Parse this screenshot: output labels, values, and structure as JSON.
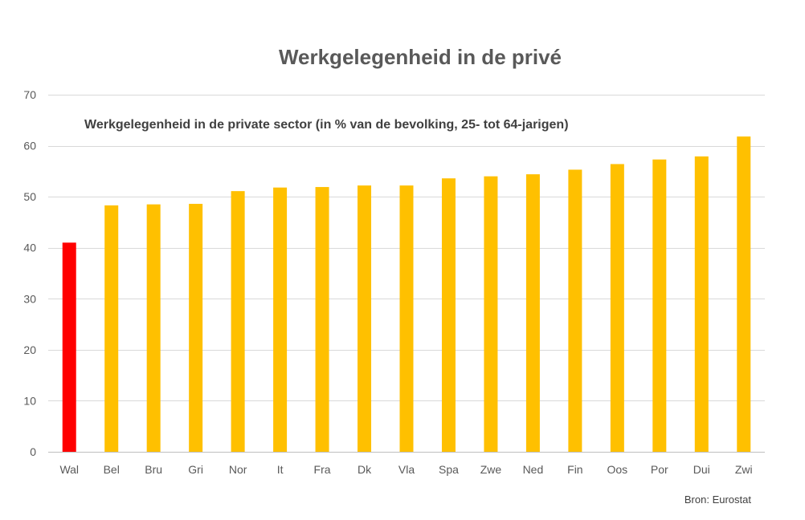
{
  "chart_data": {
    "type": "bar",
    "title": "Werkgelegenheid in de privé",
    "subtitle": "Werkgelegenheid in de private sector (in % van de bevolking, 25- tot 64-jarigen)",
    "xlabel": "",
    "ylabel": "",
    "ylim": [
      0,
      70
    ],
    "yticks": [
      0,
      10,
      20,
      30,
      40,
      50,
      60,
      70
    ],
    "grid": true,
    "legend": "none",
    "categories": [
      "Wal",
      "Bel",
      "Bru",
      "Gri",
      "Nor",
      "It",
      "Fra",
      "Dk",
      "Vla",
      "Spa",
      "Zwe",
      "Ned",
      "Fin",
      "Oos",
      "Por",
      "Dui",
      "Zwi"
    ],
    "values": [
      41.0,
      48.3,
      48.5,
      48.6,
      51.1,
      51.8,
      51.9,
      52.2,
      52.2,
      53.6,
      54.0,
      54.4,
      55.3,
      56.4,
      57.3,
      57.9,
      61.8
    ],
    "highlight_category": "Wal",
    "colors": {
      "highlight": "#FF0000",
      "default": "#FFC000"
    }
  },
  "source": "Bron: Eurostat"
}
